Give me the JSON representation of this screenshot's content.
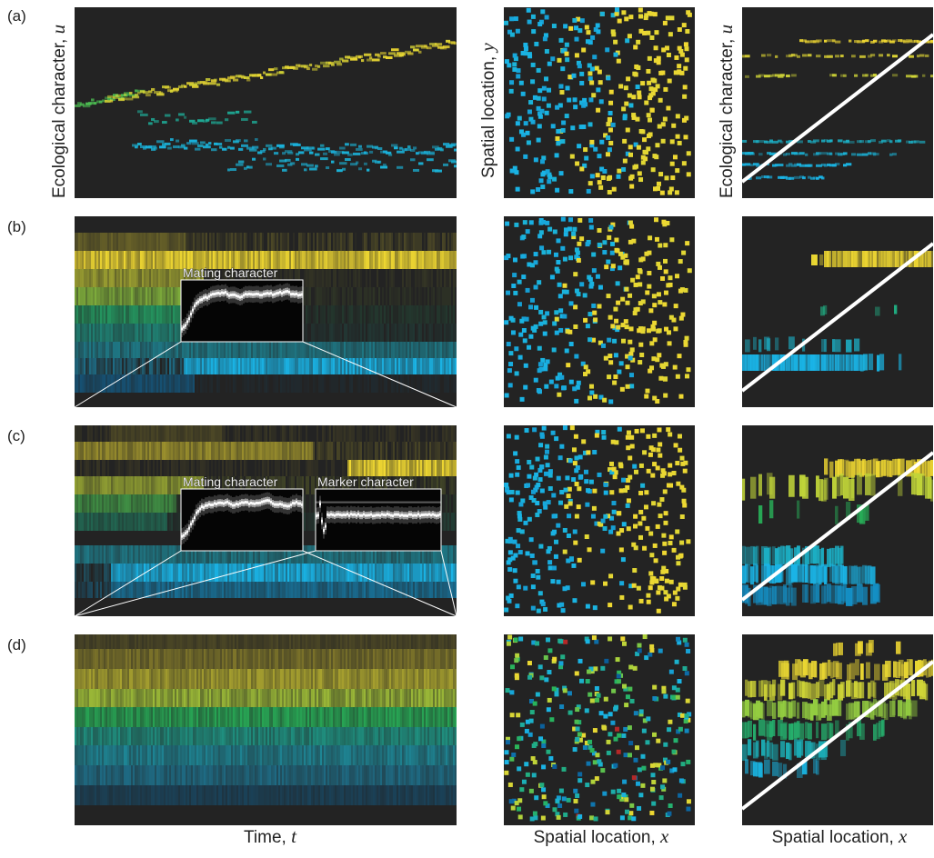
{
  "row_labels": [
    "(a)",
    "(b)",
    "(c)",
    "(d)"
  ],
  "axis_labels": {
    "y_left_text": "Ecological character, ",
    "y_left_var": "u",
    "y_middle_text": "Spatial location, ",
    "y_middle_var": "y",
    "y_right_text": "Ecological character, ",
    "y_right_var": "u",
    "x_left_text": "Time, ",
    "x_left_var": "t",
    "x_middle_text": "Spatial location, ",
    "x_middle_var": "x",
    "x_right_text": "Spatial location, ",
    "x_right_var": "x"
  },
  "insets": {
    "b_mating": "Mating character",
    "c_mating": "Mating character",
    "c_marker": "Marker character"
  },
  "colors": {
    "panel_bg": "#232323",
    "yellow": "#f0d832",
    "cyan": "#1ab4e6",
    "green": "#22b46e",
    "lime": "#a8d23c",
    "red": "#b42828",
    "gradient_line": "#ffffff"
  }
}
